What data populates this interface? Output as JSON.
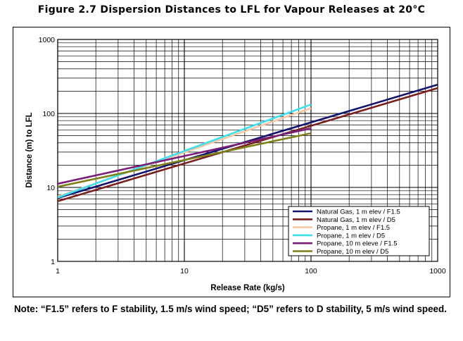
{
  "figure_title": "Figure 2.7 Dispersion Distances to LFL for Vapour Releases at 20°C",
  "note": "Note: “F1.5” refers to F stability, 1.5 m/s wind speed; “D5” refers to D stability, 5 m/s wind speed.",
  "chart_data": {
    "type": "line",
    "title": "",
    "xlabel": "Release Rate (kg/s)",
    "ylabel": "Distance (m) to LFL",
    "x_scale": "log",
    "y_scale": "log",
    "xlim": [
      1,
      1000
    ],
    "ylim": [
      1,
      1000
    ],
    "grid": true,
    "legend_position": "bottom-right",
    "x_ticks": [
      {
        "value": 1,
        "label": "1"
      },
      {
        "value": 10,
        "label": "10"
      },
      {
        "value": 100,
        "label": "100"
      },
      {
        "value": 1000,
        "label": "1000"
      }
    ],
    "y_ticks": [
      {
        "value": 1,
        "label": "1"
      },
      {
        "value": 10,
        "label": "10"
      },
      {
        "value": 100,
        "label": "100"
      },
      {
        "value": 1000,
        "label": "1000"
      }
    ],
    "series": [
      {
        "name": "Natural Gas, 1 m elev / F1.5",
        "color": "#14146e",
        "x": [
          1,
          1000
        ],
        "y": [
          7.2,
          245
        ]
      },
      {
        "name": "Natural Gas, 1 m elev / D5",
        "color": "#7a1f1f",
        "x": [
          1,
          1000
        ],
        "y": [
          6.5,
          220
        ]
      },
      {
        "name": "Propane, 1 m elev / F1.5",
        "color": "#f5c9a6",
        "x": [
          1,
          100
        ],
        "y": [
          7.5,
          118
        ]
      },
      {
        "name": "Propane, 1 m elev / D5",
        "color": "#3fe0ee",
        "x": [
          1,
          100
        ],
        "y": [
          7.3,
          132
        ]
      },
      {
        "name": "Propane, 10 m eleve / F1.5",
        "color": "#7a1e78",
        "x": [
          1,
          100
        ],
        "y": [
          11.2,
          63
        ]
      },
      {
        "name": "Propane, 10 m elev / D5",
        "color": "#7f7f1a",
        "x": [
          1,
          100
        ],
        "y": [
          10.2,
          54
        ]
      }
    ]
  }
}
